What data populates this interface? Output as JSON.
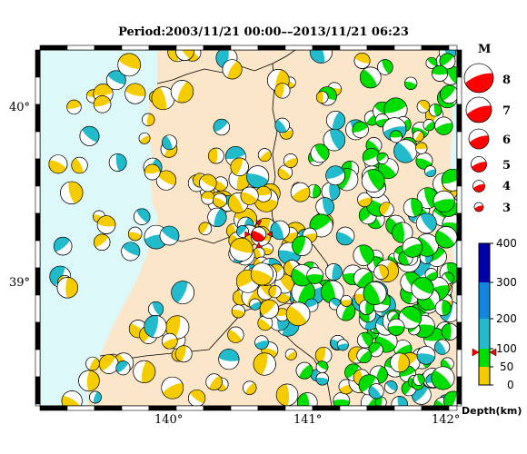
{
  "title": "Period:2003/11/21 00:00––2013/11/21 06:23",
  "axis": {
    "lat_ticks": [
      "40°",
      "39°"
    ],
    "lon_ticks": [
      "140°",
      "141°",
      "142°"
    ]
  },
  "colors": {
    "sea": "#dcf8f8",
    "land": "#fbe6c9",
    "mechanism_main": "#ff0000",
    "depth_0_50": "#f5cc00",
    "depth_50_100": "#00dd00",
    "depth_100_200": "#22bbcc",
    "depth_200_300": "#1188dd",
    "depth_300_400": "#0000aa"
  },
  "magnitude_legend": {
    "title": "M",
    "labels": [
      "8",
      "7",
      "6",
      "5",
      "4",
      "3"
    ]
  },
  "depth_legend": {
    "labels": [
      "400",
      "300",
      "200",
      "100",
      "50",
      "0"
    ],
    "title": "Depth(km)",
    "marker_depth": 90
  },
  "main_event": {
    "lon": 140.6,
    "lat": 39.33
  }
}
